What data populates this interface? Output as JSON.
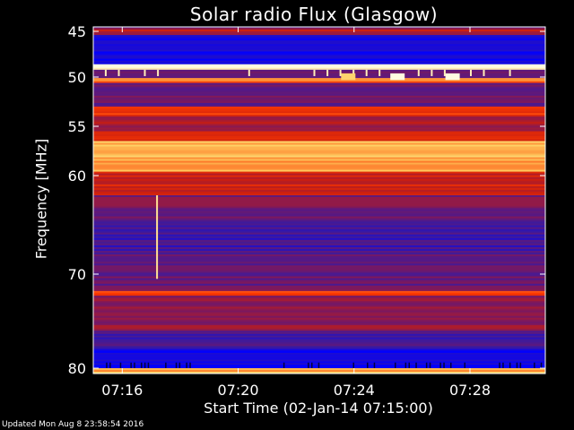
{
  "chart_data": {
    "type": "heatmap",
    "title": "Solar radio Flux (Glasgow)",
    "xlabel": "Start Time (02-Jan-14 07:15:00)",
    "ylabel": "Frequency [MHz]",
    "x_range_minutes": [
      0,
      15.6
    ],
    "x_ticks": [
      {
        "value": 1,
        "label": "07:16"
      },
      {
        "value": 5,
        "label": "07:20"
      },
      {
        "value": 9,
        "label": "07:24"
      },
      {
        "value": 13,
        "label": "07:28"
      }
    ],
    "y_range_mhz": [
      44.5,
      80.5
    ],
    "y_ticks": [
      {
        "value": 45,
        "label": "45"
      },
      {
        "value": 50,
        "label": "50"
      },
      {
        "value": 55,
        "label": "55"
      },
      {
        "value": 60,
        "label": "60"
      },
      {
        "value": 70,
        "label": "70"
      },
      {
        "value": 80,
        "label": "80"
      }
    ],
    "colormap": [
      "#0000ff",
      "#3a1aa0",
      "#7a1860",
      "#c81e10",
      "#ff3a00",
      "#ffd060",
      "#fffbe0"
    ],
    "frequency_bands": [
      {
        "from": 44.6,
        "to": 45.4,
        "level": 0.45
      },
      {
        "from": 45.4,
        "to": 48.6,
        "level": 0.05
      },
      {
        "from": 48.6,
        "to": 49.2,
        "level": 1.0
      },
      {
        "from": 49.2,
        "to": 50.1,
        "level": 0.25
      },
      {
        "from": 50.1,
        "to": 50.6,
        "level": 0.7
      },
      {
        "from": 50.6,
        "to": 53.0,
        "level": 0.28
      },
      {
        "from": 53.0,
        "to": 54.0,
        "level": 0.62
      },
      {
        "from": 54.0,
        "to": 55.5,
        "level": 0.42
      },
      {
        "from": 55.5,
        "to": 56.5,
        "level": 0.58
      },
      {
        "from": 56.5,
        "to": 59.6,
        "level": 0.78
      },
      {
        "from": 59.6,
        "to": 62.0,
        "level": 0.52
      },
      {
        "from": 62.0,
        "to": 64.5,
        "level": 0.32
      },
      {
        "from": 64.5,
        "to": 68.0,
        "level": 0.18
      },
      {
        "from": 68.0,
        "to": 71.8,
        "level": 0.28
      },
      {
        "from": 71.8,
        "to": 72.3,
        "level": 0.62
      },
      {
        "from": 72.3,
        "to": 76.0,
        "level": 0.36
      },
      {
        "from": 76.0,
        "to": 78.0,
        "level": 0.18
      },
      {
        "from": 78.0,
        "to": 80.0,
        "level": 0.05
      },
      {
        "from": 80.0,
        "to": 80.5,
        "level": 0.8
      }
    ],
    "bursts": [
      {
        "time": 2.2,
        "from": 62.0,
        "to": 70.5,
        "level": 0.9
      },
      {
        "time": 10.5,
        "from": 49.6,
        "to": 50.3,
        "level": 1.0
      },
      {
        "time": 12.4,
        "from": 49.6,
        "to": 50.3,
        "level": 1.0
      },
      {
        "time": 8.8,
        "from": 49.6,
        "to": 50.3,
        "level": 0.85
      }
    ]
  },
  "footer": {
    "updated": "Updated Mon Aug  8 23:58:54 2016"
  }
}
